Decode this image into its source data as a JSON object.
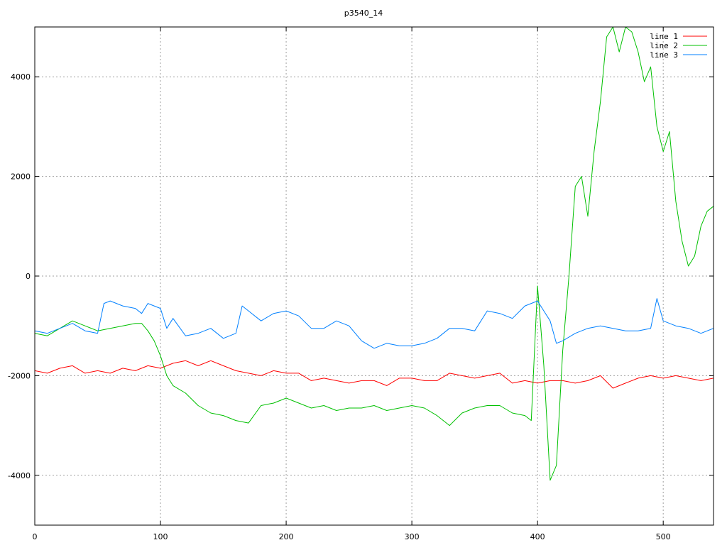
{
  "chart_data": {
    "type": "line",
    "title": "p3540_14",
    "xlabel": "",
    "ylabel": "",
    "xlim": [
      0,
      540
    ],
    "ylim": [
      -5000,
      5000
    ],
    "xticks": [
      0,
      100,
      200,
      300,
      400,
      500
    ],
    "yticks": [
      -4000,
      -2000,
      0,
      2000,
      4000
    ],
    "xtick_labels": [
      "0",
      "100",
      "200",
      "300",
      "400",
      "500"
    ],
    "ytick_labels": [
      "-4000",
      "-2000",
      "0",
      "2000",
      "4000"
    ],
    "grid": true,
    "legend_position": "top-right",
    "series": [
      {
        "name": "line 1",
        "color": "#ff0000",
        "x": [
          0,
          10,
          20,
          30,
          40,
          50,
          60,
          70,
          80,
          90,
          100,
          110,
          120,
          130,
          140,
          150,
          160,
          170,
          180,
          190,
          200,
          210,
          220,
          230,
          240,
          250,
          260,
          270,
          280,
          290,
          300,
          310,
          320,
          330,
          340,
          350,
          360,
          370,
          380,
          390,
          400,
          410,
          420,
          430,
          440,
          450,
          460,
          470,
          480,
          490,
          500,
          510,
          520,
          530,
          540
        ],
        "y": [
          -1900,
          -1950,
          -1850,
          -1800,
          -1950,
          -1900,
          -1950,
          -1850,
          -1900,
          -1800,
          -1850,
          -1750,
          -1700,
          -1800,
          -1700,
          -1800,
          -1900,
          -1950,
          -2000,
          -1900,
          -1950,
          -1950,
          -2100,
          -2050,
          -2100,
          -2150,
          -2100,
          -2100,
          -2200,
          -2050,
          -2050,
          -2100,
          -2100,
          -1950,
          -2000,
          -2050,
          -2000,
          -1950,
          -2150,
          -2100,
          -2150,
          -2100,
          -2100,
          -2150,
          -2100,
          -2000,
          -2250,
          -2150,
          -2050,
          -2000,
          -2050,
          -2000,
          -2050,
          -2100,
          -2050
        ]
      },
      {
        "name": "line 2",
        "color": "#00c000",
        "x": [
          0,
          10,
          20,
          30,
          40,
          50,
          60,
          70,
          80,
          85,
          90,
          95,
          100,
          105,
          110,
          120,
          130,
          140,
          150,
          160,
          170,
          180,
          190,
          200,
          210,
          220,
          230,
          240,
          250,
          260,
          270,
          280,
          290,
          300,
          310,
          320,
          330,
          340,
          350,
          360,
          370,
          380,
          390,
          395,
          400,
          405,
          410,
          415,
          420,
          425,
          430,
          435,
          440,
          445,
          450,
          455,
          460,
          465,
          470,
          475,
          480,
          485,
          490,
          495,
          500,
          505,
          510,
          515,
          520,
          525,
          530,
          535,
          540
        ],
        "y": [
          -1150,
          -1200,
          -1050,
          -900,
          -1000,
          -1100,
          -1050,
          -1000,
          -950,
          -950,
          -1100,
          -1300,
          -1600,
          -2000,
          -2200,
          -2350,
          -2600,
          -2750,
          -2800,
          -2900,
          -2950,
          -2600,
          -2550,
          -2450,
          -2550,
          -2650,
          -2600,
          -2700,
          -2650,
          -2650,
          -2600,
          -2700,
          -2650,
          -2600,
          -2650,
          -2800,
          -3000,
          -2750,
          -2650,
          -2600,
          -2600,
          -2750,
          -2800,
          -2900,
          -200,
          -1800,
          -4100,
          -3800,
          -1500,
          0,
          1800,
          2000,
          1200,
          2500,
          3500,
          4800,
          5000,
          4500,
          5000,
          4900,
          4500,
          3900,
          4200,
          3000,
          2500,
          2900,
          1500,
          700,
          200,
          400,
          1000,
          1300,
          1400
        ]
      },
      {
        "name": "line 3",
        "color": "#0080ff",
        "x": [
          0,
          10,
          20,
          30,
          40,
          50,
          55,
          60,
          70,
          80,
          85,
          90,
          100,
          105,
          110,
          120,
          130,
          140,
          150,
          160,
          165,
          170,
          180,
          190,
          200,
          210,
          220,
          230,
          240,
          250,
          260,
          270,
          280,
          290,
          300,
          310,
          320,
          330,
          340,
          350,
          360,
          370,
          380,
          390,
          400,
          405,
          410,
          415,
          420,
          430,
          440,
          450,
          460,
          470,
          480,
          490,
          495,
          500,
          510,
          520,
          530,
          540
        ],
        "y": [
          -1100,
          -1150,
          -1050,
          -950,
          -1100,
          -1150,
          -550,
          -500,
          -600,
          -650,
          -750,
          -550,
          -650,
          -1050,
          -850,
          -1200,
          -1150,
          -1050,
          -1250,
          -1150,
          -600,
          -700,
          -900,
          -750,
          -700,
          -800,
          -1050,
          -1050,
          -900,
          -1000,
          -1300,
          -1450,
          -1350,
          -1400,
          -1400,
          -1350,
          -1250,
          -1050,
          -1050,
          -1100,
          -700,
          -750,
          -850,
          -600,
          -500,
          -700,
          -900,
          -1350,
          -1300,
          -1150,
          -1050,
          -1000,
          -1050,
          -1100,
          -1100,
          -1050,
          -450,
          -900,
          -1000,
          -1050,
          -1150,
          -1050
        ]
      }
    ]
  }
}
